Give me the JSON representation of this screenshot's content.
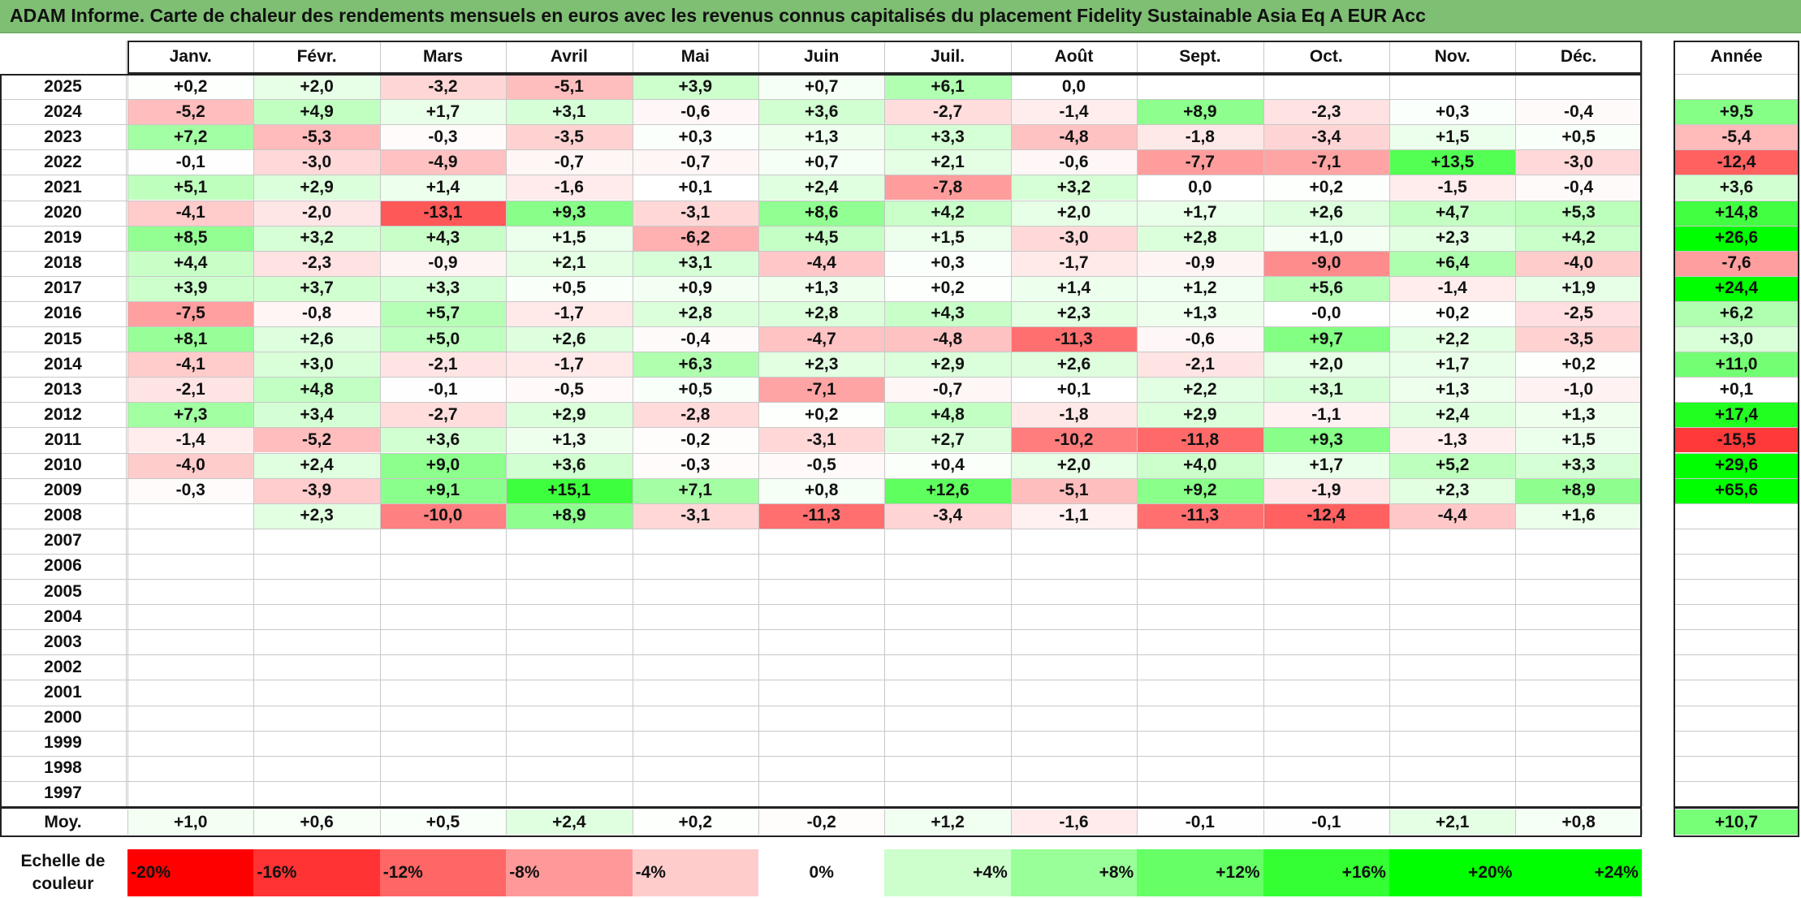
{
  "title": "ADAM Informe. Carte de chaleur des rendements mensuels en euros avec les revenus connus capitalisés du placement Fidelity Sustainable Asia Eq A EUR Acc",
  "chart_data": {
    "type": "heatmap",
    "title": "ADAM Informe. Carte de chaleur des rendements mensuels en euros avec les revenus connus capitalisés du placement Fidelity Sustainable Asia Eq A EUR Acc",
    "columns": [
      "Janv.",
      "Févr.",
      "Mars",
      "Avril",
      "Mai",
      "Juin",
      "Juil.",
      "Août",
      "Sept.",
      "Oct.",
      "Nov.",
      "Déc."
    ],
    "year_column_label": "Année",
    "rows": [
      {
        "year": "2025",
        "months": [
          "+0,2",
          "+2,0",
          "-3,2",
          "-5,1",
          "+3,9",
          "+0,7",
          "+6,1",
          "0,0",
          "",
          "",
          "",
          ""
        ],
        "annual": ""
      },
      {
        "year": "2024",
        "months": [
          "-5,2",
          "+4,9",
          "+1,7",
          "+3,1",
          "-0,6",
          "+3,6",
          "-2,7",
          "-1,4",
          "+8,9",
          "-2,3",
          "+0,3",
          "-0,4"
        ],
        "annual": "+9,5"
      },
      {
        "year": "2023",
        "months": [
          "+7,2",
          "-5,3",
          "-0,3",
          "-3,5",
          "+0,3",
          "+1,3",
          "+3,3",
          "-4,8",
          "-1,8",
          "-3,4",
          "+1,5",
          "+0,5"
        ],
        "annual": "-5,4"
      },
      {
        "year": "2022",
        "months": [
          "-0,1",
          "-3,0",
          "-4,9",
          "-0,7",
          "-0,7",
          "+0,7",
          "+2,1",
          "-0,6",
          "-7,7",
          "-7,1",
          "+13,5",
          "-3,0"
        ],
        "annual": "-12,4"
      },
      {
        "year": "2021",
        "months": [
          "+5,1",
          "+2,9",
          "+1,4",
          "-1,6",
          "+0,1",
          "+2,4",
          "-7,8",
          "+3,2",
          "0,0",
          "+0,2",
          "-1,5",
          "-0,4"
        ],
        "annual": "+3,6"
      },
      {
        "year": "2020",
        "months": [
          "-4,1",
          "-2,0",
          "-13,1",
          "+9,3",
          "-3,1",
          "+8,6",
          "+4,2",
          "+2,0",
          "+1,7",
          "+2,6",
          "+4,7",
          "+5,3"
        ],
        "annual": "+14,8"
      },
      {
        "year": "2019",
        "months": [
          "+8,5",
          "+3,2",
          "+4,3",
          "+1,5",
          "-6,2",
          "+4,5",
          "+1,5",
          "-3,0",
          "+2,8",
          "+1,0",
          "+2,3",
          "+4,2"
        ],
        "annual": "+26,6"
      },
      {
        "year": "2018",
        "months": [
          "+4,4",
          "-2,3",
          "-0,9",
          "+2,1",
          "+3,1",
          "-4,4",
          "+0,3",
          "-1,7",
          "-0,9",
          "-9,0",
          "+6,4",
          "-4,0"
        ],
        "annual": "-7,6"
      },
      {
        "year": "2017",
        "months": [
          "+3,9",
          "+3,7",
          "+3,3",
          "+0,5",
          "+0,9",
          "+1,3",
          "+0,2",
          "+1,4",
          "+1,2",
          "+5,6",
          "-1,4",
          "+1,9"
        ],
        "annual": "+24,4"
      },
      {
        "year": "2016",
        "months": [
          "-7,5",
          "-0,8",
          "+5,7",
          "-1,7",
          "+2,8",
          "+2,8",
          "+4,3",
          "+2,3",
          "+1,3",
          "-0,0",
          "+0,2",
          "-2,5"
        ],
        "annual": "+6,2"
      },
      {
        "year": "2015",
        "months": [
          "+8,1",
          "+2,6",
          "+5,0",
          "+2,6",
          "-0,4",
          "-4,7",
          "-4,8",
          "-11,3",
          "-0,6",
          "+9,7",
          "+2,2",
          "-3,5"
        ],
        "annual": "+3,0"
      },
      {
        "year": "2014",
        "months": [
          "-4,1",
          "+3,0",
          "-2,1",
          "-1,7",
          "+6,3",
          "+2,3",
          "+2,9",
          "+2,6",
          "-2,1",
          "+2,0",
          "+1,7",
          "+0,2"
        ],
        "annual": "+11,0"
      },
      {
        "year": "2013",
        "months": [
          "-2,1",
          "+4,8",
          "-0,1",
          "-0,5",
          "+0,5",
          "-7,1",
          "-0,7",
          "+0,1",
          "+2,2",
          "+3,1",
          "+1,3",
          "-1,0"
        ],
        "annual": "+0,1"
      },
      {
        "year": "2012",
        "months": [
          "+7,3",
          "+3,4",
          "-2,7",
          "+2,9",
          "-2,8",
          "+0,2",
          "+4,8",
          "-1,8",
          "+2,9",
          "-1,1",
          "+2,4",
          "+1,3"
        ],
        "annual": "+17,4"
      },
      {
        "year": "2011",
        "months": [
          "-1,4",
          "-5,2",
          "+3,6",
          "+1,3",
          "-0,2",
          "-3,1",
          "+2,7",
          "-10,2",
          "-11,8",
          "+9,3",
          "-1,3",
          "+1,5"
        ],
        "annual": "-15,5"
      },
      {
        "year": "2010",
        "months": [
          "-4,0",
          "+2,4",
          "+9,0",
          "+3,6",
          "-0,3",
          "-0,5",
          "+0,4",
          "+2,0",
          "+4,0",
          "+1,7",
          "+5,2",
          "+3,3"
        ],
        "annual": "+29,6"
      },
      {
        "year": "2009",
        "months": [
          "-0,3",
          "-3,9",
          "+9,1",
          "+15,1",
          "+7,1",
          "+0,8",
          "+12,6",
          "-5,1",
          "+9,2",
          "-1,9",
          "+2,3",
          "+8,9"
        ],
        "annual": "+65,6"
      },
      {
        "year": "2008",
        "months": [
          "",
          "+2,3",
          "-10,0",
          "+8,9",
          "-3,1",
          "-11,3",
          "-3,4",
          "-1,1",
          "-11,3",
          "-12,4",
          "-4,4",
          "+1,6"
        ],
        "annual": ""
      },
      {
        "year": "2007",
        "months": [
          "",
          "",
          "",
          "",
          "",
          "",
          "",
          "",
          "",
          "",
          "",
          ""
        ],
        "annual": ""
      },
      {
        "year": "2006",
        "months": [
          "",
          "",
          "",
          "",
          "",
          "",
          "",
          "",
          "",
          "",
          "",
          ""
        ],
        "annual": ""
      },
      {
        "year": "2005",
        "months": [
          "",
          "",
          "",
          "",
          "",
          "",
          "",
          "",
          "",
          "",
          "",
          ""
        ],
        "annual": ""
      },
      {
        "year": "2004",
        "months": [
          "",
          "",
          "",
          "",
          "",
          "",
          "",
          "",
          "",
          "",
          "",
          ""
        ],
        "annual": ""
      },
      {
        "year": "2003",
        "months": [
          "",
          "",
          "",
          "",
          "",
          "",
          "",
          "",
          "",
          "",
          "",
          ""
        ],
        "annual": ""
      },
      {
        "year": "2002",
        "months": [
          "",
          "",
          "",
          "",
          "",
          "",
          "",
          "",
          "",
          "",
          "",
          ""
        ],
        "annual": ""
      },
      {
        "year": "2001",
        "months": [
          "",
          "",
          "",
          "",
          "",
          "",
          "",
          "",
          "",
          "",
          "",
          ""
        ],
        "annual": ""
      },
      {
        "year": "2000",
        "months": [
          "",
          "",
          "",
          "",
          "",
          "",
          "",
          "",
          "",
          "",
          "",
          ""
        ],
        "annual": ""
      },
      {
        "year": "1999",
        "months": [
          "",
          "",
          "",
          "",
          "",
          "",
          "",
          "",
          "",
          "",
          "",
          ""
        ],
        "annual": ""
      },
      {
        "year": "1998",
        "months": [
          "",
          "",
          "",
          "",
          "",
          "",
          "",
          "",
          "",
          "",
          "",
          ""
        ],
        "annual": ""
      },
      {
        "year": "1997",
        "months": [
          "",
          "",
          "",
          "",
          "",
          "",
          "",
          "",
          "",
          "",
          "",
          ""
        ],
        "annual": ""
      }
    ],
    "average_row": {
      "label": "Moy.",
      "months": [
        "+1,0",
        "+0,6",
        "+0,5",
        "+2,4",
        "+0,2",
        "-0,2",
        "+1,2",
        "-1,6",
        "-0,1",
        "-0,1",
        "+2,1",
        "+0,8"
      ],
      "annual": "+10,7"
    },
    "color_scale": {
      "label": "Echelle de couleur",
      "steps": [
        {
          "label": "-20%",
          "color": "#ff0000"
        },
        {
          "label": "-16%",
          "color": "#ff3333"
        },
        {
          "label": "-12%",
          "color": "#ff6666"
        },
        {
          "label": "-8%",
          "color": "#ff9999"
        },
        {
          "label": "-4%",
          "color": "#ffcccc"
        },
        {
          "label": "0%",
          "color": "#ffffff"
        },
        {
          "label": "+4%",
          "color": "#ccffcc"
        },
        {
          "label": "+8%",
          "color": "#99ff99"
        },
        {
          "label": "+12%",
          "color": "#66ff66"
        },
        {
          "label": "+16%",
          "color": "#33ff33"
        },
        {
          "label": "+20%",
          "color": "#00ff00"
        },
        {
          "label": "+24%",
          "color": "#00ff00"
        }
      ]
    },
    "colors": {
      "negative_max": "#ff0000",
      "neutral": "#ffffff",
      "positive_max": "#00ff00",
      "title_bar": "#7fbf74"
    }
  }
}
